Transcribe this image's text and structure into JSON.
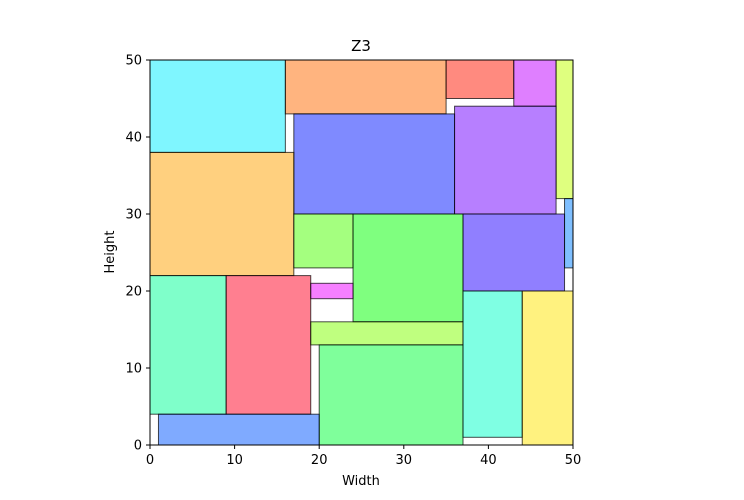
{
  "chart_data": {
    "type": "rectangle-packing",
    "title": "Z3",
    "xlabel": "Width",
    "ylabel": "Height",
    "xlim": [
      0,
      50
    ],
    "ylim": [
      0,
      50
    ],
    "xticks": [
      "0",
      "10",
      "20",
      "30",
      "40",
      "50"
    ],
    "yticks": [
      "0",
      "10",
      "20",
      "30",
      "40",
      "50"
    ],
    "grid": false,
    "rectangles": [
      {
        "x": 0,
        "y": 38,
        "w": 16,
        "h": 12,
        "color": "#00eeff"
      },
      {
        "x": 16,
        "y": 43,
        "w": 19,
        "h": 7,
        "color": "#ff6a00"
      },
      {
        "x": 35,
        "y": 45,
        "w": 8,
        "h": 5,
        "color": "#ff1500"
      },
      {
        "x": 43,
        "y": 44,
        "w": 5,
        "h": 6,
        "color": "#bf00ff"
      },
      {
        "x": 48,
        "y": 32,
        "w": 2,
        "h": 18,
        "color": "#bfff00"
      },
      {
        "x": 17,
        "y": 30,
        "w": 19,
        "h": 13,
        "color": "#0015ff"
      },
      {
        "x": 36,
        "y": 30,
        "w": 12,
        "h": 14,
        "color": "#6f00ff"
      },
      {
        "x": 0,
        "y": 22,
        "w": 17,
        "h": 16,
        "color": "#ffa100"
      },
      {
        "x": 17,
        "y": 23,
        "w": 7,
        "h": 7,
        "color": "#4aff00"
      },
      {
        "x": 24,
        "y": 16,
        "w": 13,
        "h": 14,
        "color": "#00ff00"
      },
      {
        "x": 37,
        "y": 20,
        "w": 12,
        "h": 10,
        "color": "#2200ff"
      },
      {
        "x": 49,
        "y": 23,
        "w": 1,
        "h": 9,
        "color": "#0080ff"
      },
      {
        "x": 0,
        "y": 4,
        "w": 9,
        "h": 18,
        "color": "#00ff95"
      },
      {
        "x": 9,
        "y": 4,
        "w": 10,
        "h": 18,
        "color": "#ff0022"
      },
      {
        "x": 19,
        "y": 19,
        "w": 5,
        "h": 2,
        "color": "#ee00ff"
      },
      {
        "x": 19,
        "y": 13,
        "w": 18,
        "h": 3,
        "color": "#80ff00"
      },
      {
        "x": 20,
        "y": 0,
        "w": 17,
        "h": 13,
        "color": "#00ff37"
      },
      {
        "x": 37,
        "y": 1,
        "w": 7,
        "h": 19,
        "color": "#00ffc8"
      },
      {
        "x": 44,
        "y": 0,
        "w": 6,
        "h": 20,
        "color": "#ffe600"
      },
      {
        "x": 1,
        "y": 0,
        "w": 19,
        "h": 4,
        "color": "#0055ff"
      }
    ]
  }
}
